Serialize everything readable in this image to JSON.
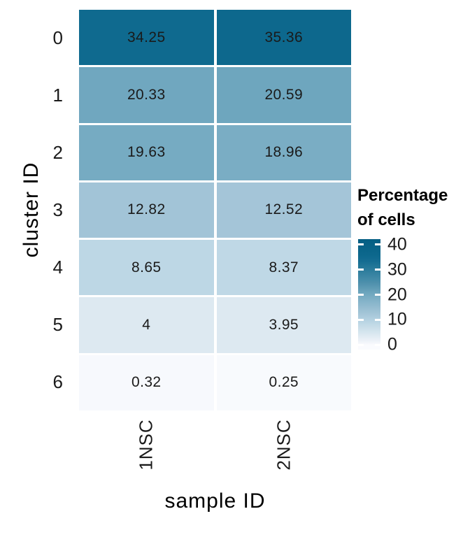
{
  "chart_data": {
    "type": "heatmap",
    "title": "",
    "xlabel": "sample ID",
    "ylabel": "cluster ID",
    "columns": [
      "1NSC",
      "2NSC"
    ],
    "rows": [
      "0",
      "1",
      "2",
      "3",
      "4",
      "5",
      "6"
    ],
    "values": [
      [
        34.25,
        35.36
      ],
      [
        20.33,
        20.59
      ],
      [
        19.63,
        18.96
      ],
      [
        12.82,
        12.52
      ],
      [
        8.65,
        8.37
      ],
      [
        4,
        3.95
      ],
      [
        0.32,
        0.25
      ]
    ],
    "value_labels": [
      [
        "34.25",
        "35.36"
      ],
      [
        "20.33",
        "20.59"
      ],
      [
        "19.63",
        "18.96"
      ],
      [
        "12.82",
        "12.52"
      ],
      [
        "8.65",
        "8.37"
      ],
      [
        "4",
        "3.95"
      ],
      [
        "0.32",
        "0.25"
      ]
    ],
    "legend": {
      "title_lines": [
        "Percentage",
        "of cells"
      ],
      "tick_values": [
        40,
        30,
        20,
        10,
        0
      ],
      "tick_labels": [
        "40",
        "30",
        "20",
        "10",
        "0"
      ],
      "bar_top_value": 42.2,
      "bar_bottom_value": -1.9,
      "position": "right"
    },
    "color_scale": {
      "low_color": "#fafbfe",
      "high_color": "#045e83",
      "stops": [
        {
          "value": 0,
          "color": "#fafbfe"
        },
        {
          "value": 2,
          "color": "#eaf0f7"
        },
        {
          "value": 4,
          "color": "#dde9f1"
        },
        {
          "value": 8.65,
          "color": "#bdd7e5"
        },
        {
          "value": 12.82,
          "color": "#a2c4d7"
        },
        {
          "value": 19.63,
          "color": "#76abc2"
        },
        {
          "value": 25,
          "color": "#4b8fab"
        },
        {
          "value": 34.25,
          "color": "#0f6a8f"
        },
        {
          "value": 42.2,
          "color": "#045e83"
        }
      ]
    },
    "grid": false,
    "background": "#ffffff",
    "cell_text_color": "#1a1a1a"
  }
}
